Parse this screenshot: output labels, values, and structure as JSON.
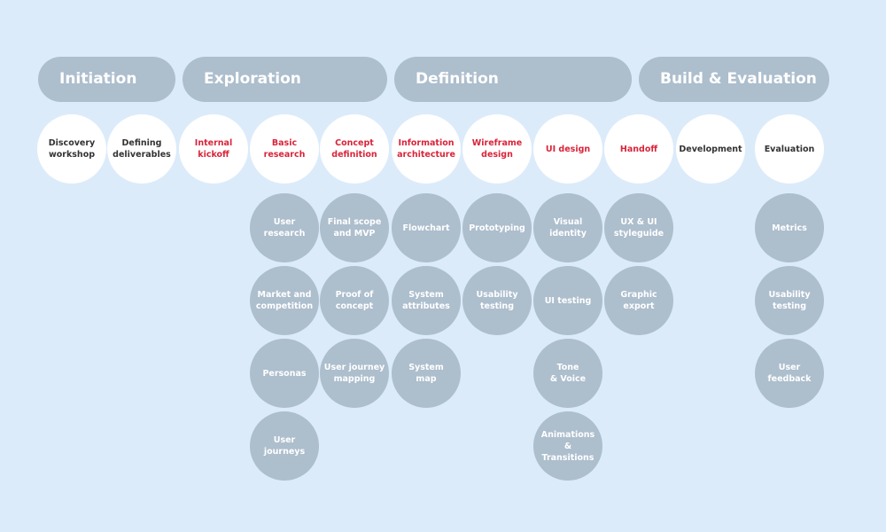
{
  "colors": {
    "background": "#dcebfa",
    "phase": "#adbecd",
    "accent": "#d9243a",
    "text": "#333333"
  },
  "phases": [
    {
      "label": "Initiation"
    },
    {
      "label": "Exploration"
    },
    {
      "label": "Definition"
    },
    {
      "label": "Build & Evaluation"
    }
  ],
  "columns": [
    {
      "head": "Discovery\nworkshop",
      "highlight": false,
      "items": []
    },
    {
      "head": "Defining\ndeliverables",
      "highlight": false,
      "items": []
    },
    {
      "head": "Internal\nkickoff",
      "highlight": true,
      "items": []
    },
    {
      "head": "Basic\nresearch",
      "highlight": true,
      "items": [
        "User\nresearch",
        "Market and\ncompetition",
        "Personas",
        "User\njourneys"
      ]
    },
    {
      "head": "Concept\ndefinition",
      "highlight": true,
      "items": [
        "Final scope\nand MVP",
        "Proof of\nconcept",
        "User journey\nmapping"
      ]
    },
    {
      "head": "Information\narchitecture",
      "highlight": true,
      "items": [
        "Flowchart",
        "System\nattributes",
        "System\nmap"
      ]
    },
    {
      "head": "Wireframe\ndesign",
      "highlight": true,
      "items": [
        "Prototyping",
        "Usability\ntesting"
      ]
    },
    {
      "head": "UI design",
      "highlight": true,
      "items": [
        "Visual\nidentity",
        "UI testing",
        "Tone\n& Voice",
        "Animations\n& Transitions"
      ]
    },
    {
      "head": "Handoff",
      "highlight": true,
      "items": [
        "UX & UI\nstyleguide",
        "Graphic\nexport"
      ]
    },
    {
      "head": "Development",
      "highlight": false,
      "items": []
    },
    {
      "head": "Evaluation",
      "highlight": false,
      "items": [
        "Metrics",
        "Usability\ntesting",
        "User\nfeedback"
      ]
    }
  ]
}
